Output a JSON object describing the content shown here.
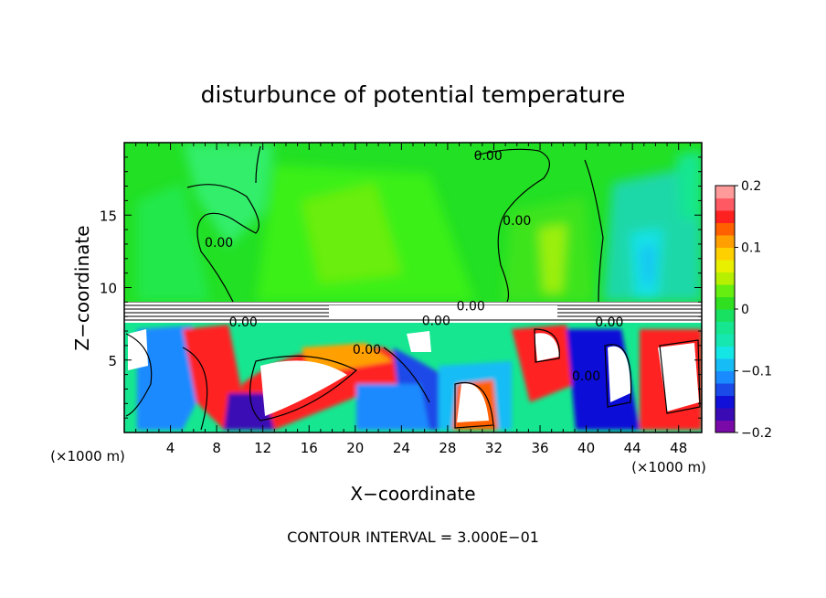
{
  "chart_data": {
    "type": "heatmap",
    "title": "disturbunce of potential temperature",
    "xlabel": "X−coordinate",
    "ylabel": "Z−coordinate",
    "x_unit_left": "(×1000 m)",
    "x_unit_right": "(×1000 m)",
    "footer": "CONTOUR INTERVAL = 3.000E−01",
    "xlim": [
      0,
      50
    ],
    "ylim": [
      0,
      20
    ],
    "x_ticks": [
      "4",
      "8",
      "12",
      "16",
      "20",
      "24",
      "28",
      "32",
      "36",
      "40",
      "44",
      "48"
    ],
    "y_ticks": [
      "5",
      "10",
      "15"
    ],
    "x_tick_values": [
      4,
      8,
      12,
      16,
      20,
      24,
      28,
      32,
      36,
      40,
      44,
      48
    ],
    "y_tick_values": [
      5,
      10,
      15
    ],
    "colorbar": {
      "range": [
        -0.2,
        0.2
      ],
      "tick_labels": [
        "0.2",
        "0.1",
        "0",
        "−0.1",
        "−0.2"
      ],
      "tick_values": [
        0.2,
        0.1,
        0,
        -0.1,
        -0.2
      ],
      "colors": [
        "#7a0aa8",
        "#3a0ab5",
        "#1010d8",
        "#1a4ae8",
        "#1a8aff",
        "#16bcf5",
        "#14e6e6",
        "#16e6b0",
        "#16e690",
        "#18e060",
        "#30e020",
        "#66ee10",
        "#b6f000",
        "#e8f000",
        "#ffd000",
        "#ffa000",
        "#ff6000",
        "#ff2020",
        "#ff5a64",
        "#ff9a9a"
      ]
    },
    "contour_labels": [
      {
        "text": "0.00",
        "x": 31.5,
        "z": 19.0
      },
      {
        "text": "0.00",
        "x": 8.2,
        "z": 13.0
      },
      {
        "text": "0.00",
        "x": 34.0,
        "z": 14.5
      },
      {
        "text": "0.00",
        "x": 30.0,
        "z": 8.6
      },
      {
        "text": "0.00",
        "x": 10.3,
        "z": 7.5
      },
      {
        "text": "0.00",
        "x": 27.0,
        "z": 7.6
      },
      {
        "text": "0.00",
        "x": 42.0,
        "z": 7.5
      },
      {
        "text": "0.00",
        "x": 21.0,
        "z": 5.6
      },
      {
        "text": "0.00",
        "x": 40.0,
        "z": 3.8
      }
    ],
    "grid": false,
    "legend": "colorbar-right"
  }
}
